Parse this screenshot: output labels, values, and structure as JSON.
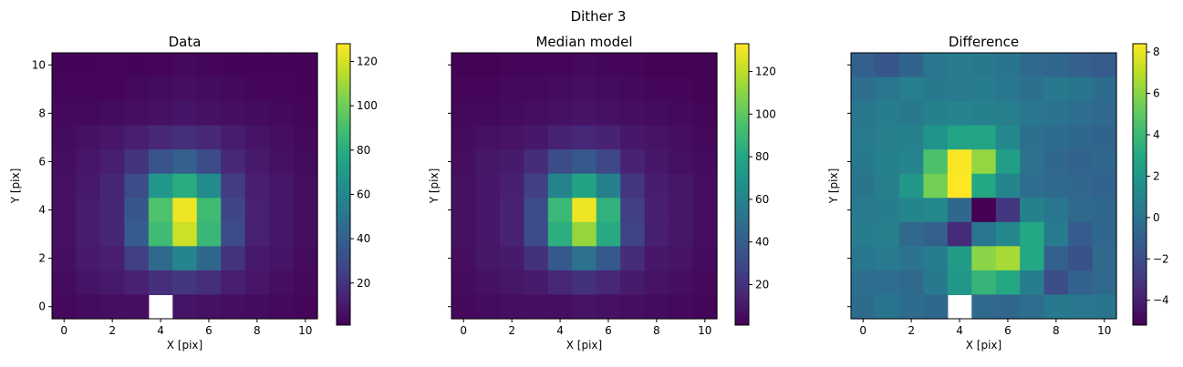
{
  "figure": {
    "suptitle": "Dither 3"
  },
  "chart_data": [
    {
      "type": "heatmap",
      "title": "Data",
      "xlabel": "X [pix]",
      "ylabel": "Y [pix]",
      "xlim": [
        -0.5,
        10.5
      ],
      "ylim": [
        -0.5,
        10.5
      ],
      "xticks": [
        0,
        2,
        4,
        6,
        8,
        10
      ],
      "yticks": [
        0,
        2,
        4,
        6,
        8,
        10
      ],
      "show_ytick_labels": true,
      "colormap": "viridis",
      "vmin": 1,
      "vmax": 128,
      "colorbar_ticks": [
        20,
        40,
        60,
        80,
        100,
        120
      ],
      "rows_top_to_bottom": [
        [
          2,
          2,
          3,
          2,
          3,
          4,
          3,
          2,
          2,
          2,
          2
        ],
        [
          3,
          3,
          3,
          4,
          5,
          6,
          5,
          4,
          3,
          3,
          2
        ],
        [
          4,
          4,
          5,
          6,
          7,
          8,
          7,
          6,
          5,
          4,
          3
        ],
        [
          5,
          7,
          9,
          12,
          16,
          18,
          16,
          11,
          8,
          6,
          4
        ],
        [
          6,
          9,
          12,
          20,
          34,
          40,
          30,
          16,
          10,
          7,
          5
        ],
        [
          7,
          10,
          15,
          30,
          68,
          80,
          62,
          24,
          12,
          9,
          6
        ],
        [
          7,
          11,
          15,
          36,
          92,
          125,
          88,
          28,
          13,
          9,
          6
        ],
        [
          7,
          11,
          15,
          38,
          88,
          118,
          86,
          30,
          13,
          9,
          6
        ],
        [
          6,
          10,
          12,
          25,
          45,
          58,
          44,
          20,
          10,
          8,
          5
        ],
        [
          5,
          8,
          10,
          13,
          18,
          22,
          18,
          12,
          9,
          6,
          4
        ],
        [
          4,
          5,
          6,
          6,
          null,
          8,
          7,
          6,
          5,
          4,
          3
        ]
      ]
    },
    {
      "type": "heatmap",
      "title": "Median model",
      "xlabel": "X [pix]",
      "ylabel": "Y [pix]",
      "xlim": [
        -0.5,
        10.5
      ],
      "ylim": [
        -0.5,
        10.5
      ],
      "xticks": [
        0,
        2,
        4,
        6,
        8,
        10
      ],
      "yticks": [
        0,
        2,
        4,
        6,
        8,
        10
      ],
      "show_ytick_labels": false,
      "colormap": "viridis",
      "vmin": 1,
      "vmax": 133,
      "colorbar_ticks": [
        20,
        40,
        60,
        80,
        100,
        120
      ],
      "rows_top_to_bottom": [
        [
          2,
          2,
          3,
          3,
          3,
          4,
          3,
          3,
          2,
          2,
          2
        ],
        [
          3,
          3,
          4,
          4,
          5,
          6,
          5,
          4,
          3,
          3,
          2
        ],
        [
          4,
          4,
          5,
          6,
          7,
          8,
          7,
          6,
          5,
          4,
          3
        ],
        [
          5,
          7,
          8,
          10,
          14,
          16,
          14,
          10,
          8,
          6,
          4
        ],
        [
          6,
          9,
          11,
          18,
          32,
          38,
          30,
          14,
          10,
          7,
          5
        ],
        [
          7,
          10,
          13,
          26,
          60,
          78,
          58,
          22,
          12,
          9,
          6
        ],
        [
          7,
          10,
          14,
          32,
          90,
          130,
          86,
          26,
          13,
          9,
          6
        ],
        [
          7,
          10,
          14,
          32,
          84,
          112,
          82,
          28,
          13,
          9,
          6
        ],
        [
          6,
          9,
          11,
          20,
          38,
          50,
          38,
          18,
          10,
          8,
          5
        ],
        [
          5,
          7,
          9,
          11,
          16,
          20,
          16,
          11,
          8,
          6,
          4
        ],
        [
          4,
          5,
          6,
          6,
          6,
          8,
          7,
          6,
          5,
          4,
          3
        ]
      ]
    },
    {
      "type": "heatmap",
      "title": "Difference",
      "xlabel": "X [pix]",
      "ylabel": "Y [pix]",
      "xlim": [
        -0.5,
        10.5
      ],
      "ylim": [
        -0.5,
        10.5
      ],
      "xticks": [
        0,
        2,
        4,
        6,
        8,
        10
      ],
      "yticks": [
        0,
        2,
        4,
        6,
        8,
        10
      ],
      "show_ytick_labels": false,
      "colormap": "viridis",
      "vmin": -5.2,
      "vmax": 8.4,
      "colorbar_ticks": [
        -4,
        -2,
        0,
        2,
        4,
        6,
        8
      ],
      "rows_top_to_bottom": [
        [
          -1.0,
          -1.5,
          -0.8,
          0.2,
          0.5,
          0.3,
          0.1,
          -0.5,
          -0.7,
          -1.0,
          -1.2
        ],
        [
          -0.3,
          0.2,
          0.6,
          0.3,
          0.4,
          0.5,
          0.2,
          -0.2,
          0.3,
          0.1,
          -0.4
        ],
        [
          0.2,
          0.5,
          0.3,
          0.8,
          0.9,
          0.7,
          0.6,
          0.2,
          0.0,
          -0.3,
          -0.5
        ],
        [
          0.4,
          0.6,
          0.8,
          1.8,
          2.8,
          2.8,
          1.2,
          -0.2,
          -0.4,
          -0.6,
          -0.8
        ],
        [
          0.3,
          0.8,
          0.9,
          4.5,
          8.3,
          6.2,
          2.5,
          -0.1,
          -0.6,
          -0.9,
          -0.7
        ],
        [
          0.1,
          0.6,
          2.0,
          5.5,
          8.4,
          3.0,
          1.0,
          -0.3,
          -0.5,
          -0.7,
          -0.9
        ],
        [
          0.4,
          0.5,
          1.0,
          1.2,
          -0.6,
          -5.2,
          -3.0,
          0.8,
          0.2,
          -0.5,
          -0.6
        ],
        [
          0.5,
          0.6,
          -0.5,
          -1.0,
          -3.5,
          0.2,
          1.2,
          3.0,
          0.4,
          -1.2,
          -0.6
        ],
        [
          0.2,
          0.4,
          0.0,
          0.5,
          2.2,
          6.0,
          6.6,
          3.0,
          -1.0,
          -1.8,
          -0.5
        ],
        [
          -0.3,
          -0.3,
          -0.5,
          0.3,
          2.0,
          3.8,
          3.0,
          0.5,
          -2.0,
          -0.9,
          -0.5
        ],
        [
          -0.4,
          0.1,
          -0.4,
          -0.6,
          null,
          -0.5,
          -0.7,
          -0.3,
          0.3,
          0.2,
          0.1
        ]
      ]
    }
  ]
}
